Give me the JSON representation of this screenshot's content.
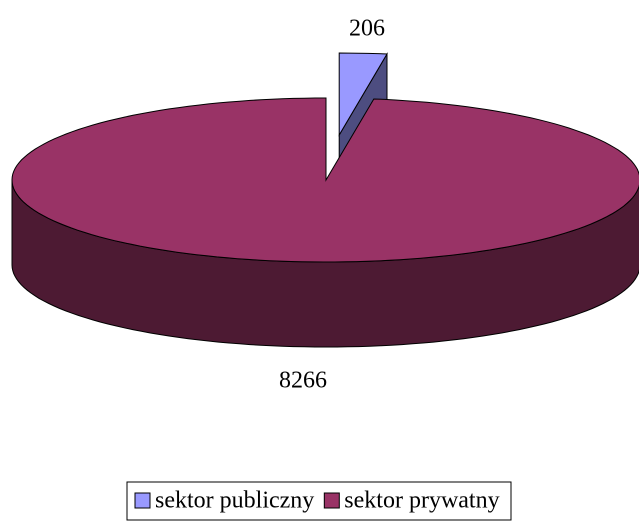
{
  "chart_data": {
    "type": "pie",
    "categories": [
      "sektor publiczny",
      "sektor prywatny"
    ],
    "values": [
      206,
      8266
    ],
    "colors": [
      "#9999ff",
      "#993366"
    ],
    "legend": "bottom"
  }
}
